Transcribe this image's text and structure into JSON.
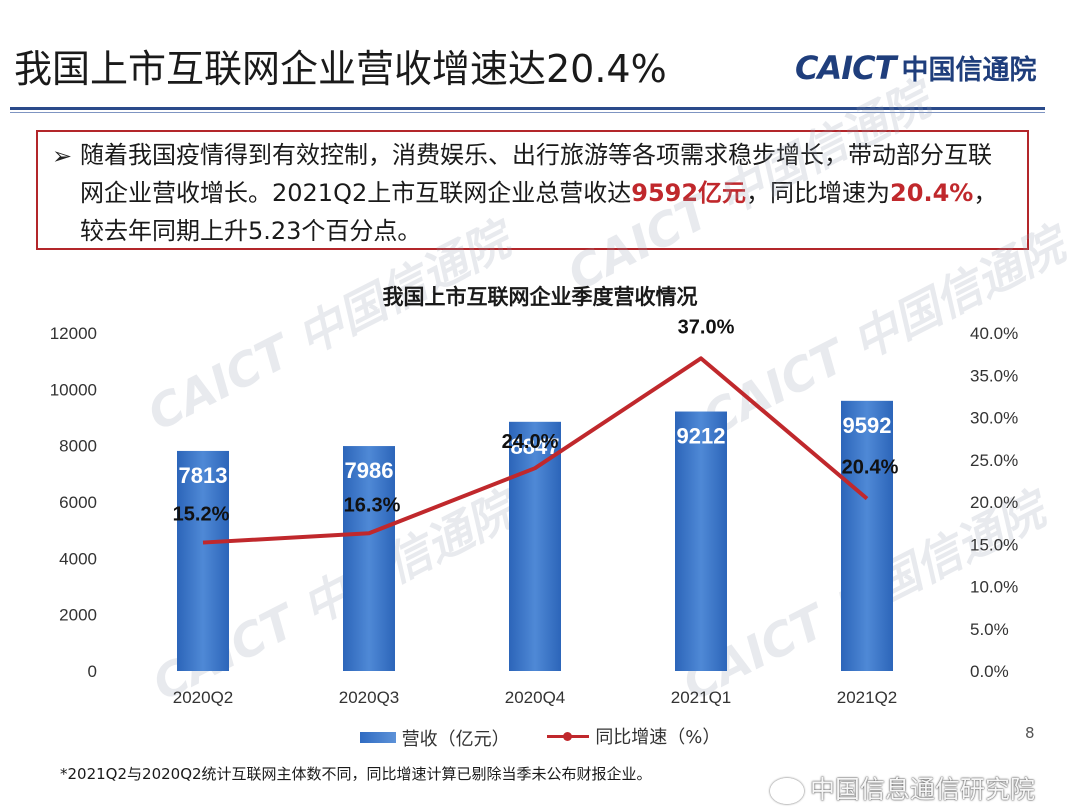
{
  "slide": {
    "title": "我国上市互联网企业营收增速达20.4%",
    "logo_en": "CAICT",
    "logo_cn": "中国信通院",
    "bullet_symbol": "➢",
    "paragraph": {
      "part1": "随着我国疫情得到有效控制，消费娱乐、出行旅游等各项需求稳步增长，带动部分互联网企业营收增长。2021Q2上市互联网企业总营收达",
      "highlight1": "9592亿元",
      "part2": "，同比增速为",
      "highlight2": "20.4%",
      "part3": "，较去年同期上升5.23个百分点。"
    },
    "watermark": "CAICT 中国信通院",
    "footnote": "*2021Q2与2020Q2统计互联网主体数不同，同比增速计算已剔除当季未公布财报企业。",
    "weibo_text": "中国信息通信研究院",
    "page_number": "8"
  },
  "colors": {
    "bar": "#3a75c4",
    "line": "#c0282c",
    "title_blue": "#1f3e7c",
    "highlight_red": "#c0282c"
  },
  "chart_data": {
    "type": "bar",
    "title": "我国上市互联网企业季度营收情况",
    "categories": [
      "2020Q2",
      "2020Q3",
      "2020Q4",
      "2021Q1",
      "2021Q2"
    ],
    "series": [
      {
        "name": "营收（亿元）",
        "type": "bar",
        "axis": "left",
        "values": [
          7813,
          7986,
          8847,
          9212,
          9592
        ]
      },
      {
        "name": "同比增速（%）",
        "type": "line",
        "axis": "right",
        "values": [
          15.2,
          16.3,
          24.0,
          37.0,
          20.4
        ]
      }
    ],
    "bar_labels": [
      "7813",
      "7986",
      "8847",
      "9212",
      "9592"
    ],
    "line_labels": [
      "15.2%",
      "16.3%",
      "24.0%",
      "37.0%",
      "20.4%"
    ],
    "y_left": {
      "ylim": [
        0,
        12000
      ],
      "ticks": [
        "0",
        "2000",
        "4000",
        "6000",
        "8000",
        "10000",
        "12000"
      ]
    },
    "y_right": {
      "ylim": [
        0,
        40
      ],
      "ticks": [
        "0.0%",
        "5.0%",
        "10.0%",
        "15.0%",
        "20.0%",
        "25.0%",
        "30.0%",
        "35.0%",
        "40.0%"
      ]
    },
    "legend_position": "bottom",
    "grid": false
  }
}
